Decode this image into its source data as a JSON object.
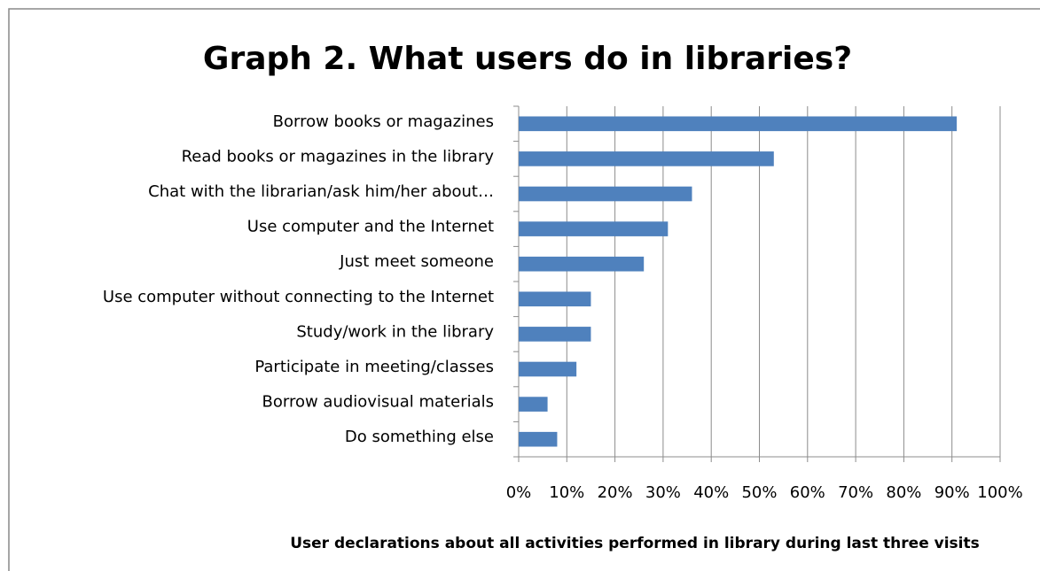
{
  "chart_data": {
    "type": "bar",
    "orientation": "horizontal",
    "title": "Graph 2. What users do in libraries?",
    "x_label": "User declarations about all activities performed in library during last three visits",
    "categories": [
      "Borrow books or magazines",
      "Read books or magazines in the library",
      "Chat with the librarian/ask him/her about…",
      "Use computer and the Internet",
      "Just meet someone",
      "Use computer without connecting to the Internet",
      "Study/work in the library",
      "Participate in meeting/classes",
      "Borrow audiovisual materials",
      "Do something else"
    ],
    "values": [
      91,
      53,
      36,
      31,
      26,
      15,
      15,
      12,
      6,
      8
    ],
    "color": "#4f81bd",
    "xlim": [
      0,
      100
    ],
    "xticks": [
      {
        "value": 0,
        "label": "0%"
      },
      {
        "value": 10,
        "label": "10%"
      },
      {
        "value": 20,
        "label": "20%"
      },
      {
        "value": 30,
        "label": "30%"
      },
      {
        "value": 40,
        "label": "40%"
      },
      {
        "value": 50,
        "label": "50%"
      },
      {
        "value": 60,
        "label": "60%"
      },
      {
        "value": 70,
        "label": "70%"
      },
      {
        "value": 80,
        "label": "80%"
      },
      {
        "value": 90,
        "label": "90%"
      },
      {
        "value": 100,
        "label": "100%"
      }
    ],
    "grid": true
  }
}
